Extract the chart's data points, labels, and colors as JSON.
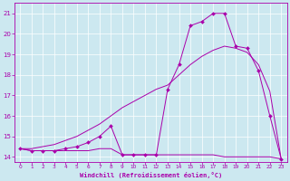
{
  "xlabel": "Windchill (Refroidissement éolien,°C)",
  "bg_color": "#cce8f0",
  "line_color": "#aa00aa",
  "hours": [
    0,
    1,
    2,
    3,
    4,
    5,
    6,
    7,
    8,
    9,
    10,
    11,
    12,
    13,
    14,
    15,
    16,
    17,
    18,
    19,
    20,
    21,
    22,
    23
  ],
  "temp_line": [
    14.4,
    14.3,
    14.3,
    14.3,
    14.3,
    14.3,
    14.3,
    14.4,
    14.4,
    14.1,
    14.1,
    14.1,
    14.1,
    14.1,
    14.1,
    14.1,
    14.1,
    14.1,
    14.0,
    14.0,
    14.0,
    14.0,
    14.0,
    13.9
  ],
  "windchill_line": [
    14.4,
    14.3,
    14.3,
    14.3,
    14.4,
    14.5,
    14.7,
    15.0,
    15.5,
    14.1,
    14.1,
    14.1,
    14.1,
    17.3,
    18.5,
    20.4,
    20.6,
    21.0,
    21.0,
    19.4,
    19.3,
    18.2,
    16.0,
    13.9
  ],
  "smooth_line": [
    14.4,
    14.4,
    14.5,
    14.6,
    14.8,
    15.0,
    15.3,
    15.6,
    16.0,
    16.4,
    16.7,
    17.0,
    17.3,
    17.5,
    18.0,
    18.5,
    18.9,
    19.2,
    19.4,
    19.3,
    19.1,
    18.5,
    17.2,
    13.9
  ],
  "xlim": [
    -0.5,
    23.5
  ],
  "ylim": [
    13.75,
    21.5
  ],
  "yticks": [
    14,
    15,
    16,
    17,
    18,
    19,
    20,
    21
  ],
  "xticks": [
    0,
    1,
    2,
    3,
    4,
    5,
    6,
    7,
    8,
    9,
    10,
    11,
    12,
    13,
    14,
    15,
    16,
    17,
    18,
    19,
    20,
    21,
    22,
    23
  ]
}
